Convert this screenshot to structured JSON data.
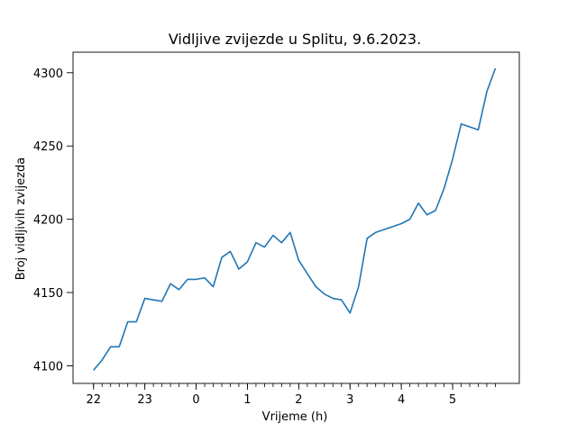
{
  "chart_data": {
    "type": "line",
    "title": "Vidljive zvijezde u Splitu, 9.6.2023.",
    "xlabel": "Vrijeme (h)",
    "ylabel": "Broj vidljivih zvijezda",
    "x_tick_labels": [
      "22",
      "23",
      "0",
      "1",
      "2",
      "3",
      "4",
      "5"
    ],
    "x_tick_hours": [
      22,
      23,
      24,
      25,
      26,
      27,
      28,
      29
    ],
    "x_minor_tick_hours": [
      22,
      22.1667,
      22.3333,
      22.5,
      22.6667,
      22.8333,
      23,
      23.1667,
      23.3333,
      23.5,
      23.6667,
      23.8333,
      24,
      24.1667,
      24.3333,
      24.5,
      24.6667,
      24.8333,
      25,
      25.1667,
      25.3333,
      25.5,
      25.6667,
      25.8333,
      26,
      26.1667,
      26.3333,
      26.5,
      26.6667,
      26.8333,
      27,
      27.1667,
      27.3333,
      27.5,
      27.6667,
      27.8333,
      28,
      28.1667,
      28.3333,
      28.5,
      28.6667,
      28.8333,
      29,
      29.1667,
      29.3333,
      29.5,
      29.6667,
      29.8333
    ],
    "y_ticks": [
      4100,
      4150,
      4200,
      4250,
      4300
    ],
    "xlim": [
      21.6,
      30.3
    ],
    "ylim": [
      4088,
      4314
    ],
    "grid": false,
    "line_color": "#1f77b4",
    "series": [
      {
        "x": [
          22,
          22.1667,
          22.3333,
          22.5,
          22.6667,
          22.8333,
          23,
          23.1667,
          23.3333,
          23.5,
          23.6667,
          23.8333,
          24,
          24.1667,
          24.3333,
          24.5,
          24.6667,
          24.8333,
          25,
          25.1667,
          25.3333,
          25.5,
          25.6667,
          25.8333,
          26,
          26.1667,
          26.3333,
          26.5,
          26.6667,
          26.8333,
          27,
          27.1667,
          27.3333,
          27.5,
          27.6667,
          27.8333,
          28,
          28.1667,
          28.3333,
          28.5,
          28.6667,
          28.8333,
          29,
          29.1667,
          29.3333,
          29.5,
          29.6667,
          29.8333
        ],
        "values": [
          4097,
          4104,
          4113,
          4113,
          4130,
          4130,
          4146,
          4145,
          4144,
          4156,
          4152,
          4159,
          4159,
          4160,
          4154,
          4174,
          4178,
          4166,
          4171,
          4184,
          4181,
          4189,
          4184,
          4191,
          4172,
          4163,
          4154,
          4149,
          4146,
          4145,
          4136,
          4154,
          4187,
          4191,
          4193,
          4195,
          4197,
          4200,
          4211,
          4203,
          4206,
          4221,
          4241,
          4265,
          4263,
          4261,
          4287,
          4303
        ]
      }
    ]
  }
}
